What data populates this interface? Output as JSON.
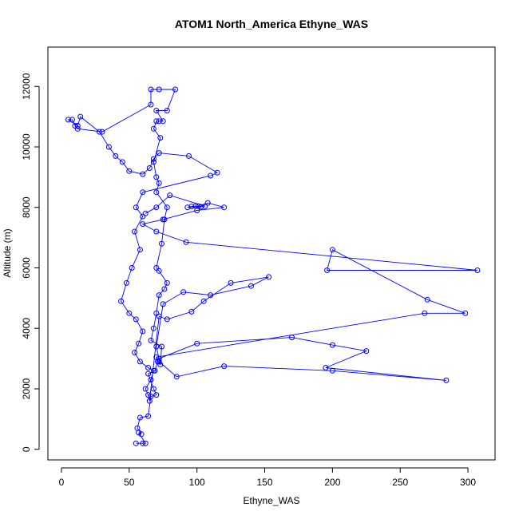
{
  "chart_data": {
    "type": "line",
    "title": "ATOM1 North_America Ethyne_WAS",
    "xlabel": "Ethyne_WAS",
    "ylabel": "Altitude (m)",
    "xlim": [
      -10,
      320
    ],
    "ylim": [
      -350,
      13300
    ],
    "xticks": [
      0,
      50,
      100,
      150,
      200,
      250,
      300
    ],
    "yticks": [
      0,
      2000,
      4000,
      6000,
      8000,
      10000,
      12000
    ],
    "grid": false,
    "colors": {
      "series": "#0000ff",
      "axes": "#000000",
      "background": "#ffffff"
    },
    "series": [
      {
        "points": [
          [
            55,
            200
          ],
          [
            60,
            200
          ],
          [
            62,
            200
          ],
          [
            57,
            550
          ],
          [
            59,
            500
          ],
          [
            56,
            700
          ],
          [
            58,
            1050
          ],
          [
            64,
            1100
          ],
          [
            66,
            1750
          ],
          [
            70,
            1800
          ],
          [
            68,
            2000
          ],
          [
            64,
            2500
          ],
          [
            69,
            2600
          ],
          [
            71,
            2900
          ],
          [
            73,
            2800
          ],
          [
            74,
            3400
          ],
          [
            66,
            3600
          ],
          [
            68,
            4000
          ],
          [
            70,
            4500
          ],
          [
            72,
            5100
          ],
          [
            76,
            5300
          ],
          [
            78,
            5500
          ],
          [
            72,
            5900
          ],
          [
            70,
            6000
          ],
          [
            74,
            6800
          ],
          [
            76,
            7600
          ],
          [
            78,
            8000
          ],
          [
            70,
            8500
          ],
          [
            72,
            8800
          ],
          [
            70,
            9000
          ],
          [
            68,
            9500
          ],
          [
            73,
            10300
          ],
          [
            68,
            10600
          ],
          [
            70,
            10850
          ],
          [
            72,
            10850
          ],
          [
            75,
            10850
          ],
          [
            70,
            11200
          ],
          [
            78,
            11200
          ],
          [
            84,
            11900
          ],
          [
            72,
            11900
          ],
          [
            66,
            11900
          ],
          [
            66,
            11400
          ],
          [
            30,
            10500
          ],
          [
            12,
            10600
          ],
          [
            10,
            10700
          ],
          [
            8,
            10900
          ],
          [
            5,
            10900
          ],
          [
            12,
            10700
          ],
          [
            14,
            11000
          ],
          [
            28,
            10500
          ],
          [
            35,
            10000
          ],
          [
            40,
            9700
          ],
          [
            45,
            9500
          ],
          [
            50,
            9200
          ],
          [
            60,
            9100
          ],
          [
            65,
            9300
          ],
          [
            68,
            9600
          ],
          [
            72,
            9800
          ],
          [
            94,
            9700
          ],
          [
            115,
            9150
          ],
          [
            110,
            9050
          ],
          [
            60,
            8500
          ],
          [
            55,
            8000
          ],
          [
            60,
            7700
          ],
          [
            54,
            7200
          ],
          [
            58,
            6600
          ],
          [
            52,
            6000
          ],
          [
            48,
            5500
          ],
          [
            44,
            4900
          ],
          [
            50,
            4500
          ],
          [
            55,
            4300
          ],
          [
            60,
            3900
          ],
          [
            57,
            3500
          ],
          [
            54,
            3200
          ],
          [
            58,
            2900
          ],
          [
            64,
            2700
          ],
          [
            68,
            2600
          ],
          [
            66,
            2300
          ],
          [
            62,
            2000
          ],
          [
            64,
            1800
          ],
          [
            65,
            1600
          ],
          [
            72,
            4400
          ],
          [
            78,
            4300
          ],
          [
            96,
            4550
          ],
          [
            105,
            4900
          ],
          [
            125,
            5500
          ],
          [
            153,
            5700
          ],
          [
            140,
            5400
          ],
          [
            110,
            5100
          ],
          [
            90,
            5200
          ],
          [
            75,
            4800
          ],
          [
            70,
            3400
          ],
          [
            72,
            3000
          ],
          [
            100,
            3500
          ],
          [
            170,
            3700
          ],
          [
            200,
            3450
          ],
          [
            225,
            3250
          ],
          [
            195,
            2700
          ],
          [
            284,
            2280
          ],
          [
            200,
            2600
          ],
          [
            120,
            2750
          ],
          [
            85,
            2400
          ],
          [
            72,
            2900
          ],
          [
            70,
            3050
          ],
          [
            268,
            4500
          ],
          [
            298,
            4500
          ],
          [
            270,
            4950
          ],
          [
            200,
            6600
          ],
          [
            196,
            5920
          ],
          [
            307,
            5920
          ],
          [
            92,
            6850
          ],
          [
            70,
            7200
          ],
          [
            60,
            7450
          ],
          [
            75,
            7600
          ],
          [
            100,
            7900
          ],
          [
            120,
            8000
          ],
          [
            108,
            8150
          ],
          [
            103,
            8020
          ],
          [
            93,
            8000
          ],
          [
            96,
            8030
          ],
          [
            99,
            8040
          ],
          [
            101,
            8040
          ],
          [
            106,
            8040
          ],
          [
            80,
            8400
          ],
          [
            70,
            8000
          ],
          [
            62,
            7800
          ]
        ]
      }
    ]
  }
}
